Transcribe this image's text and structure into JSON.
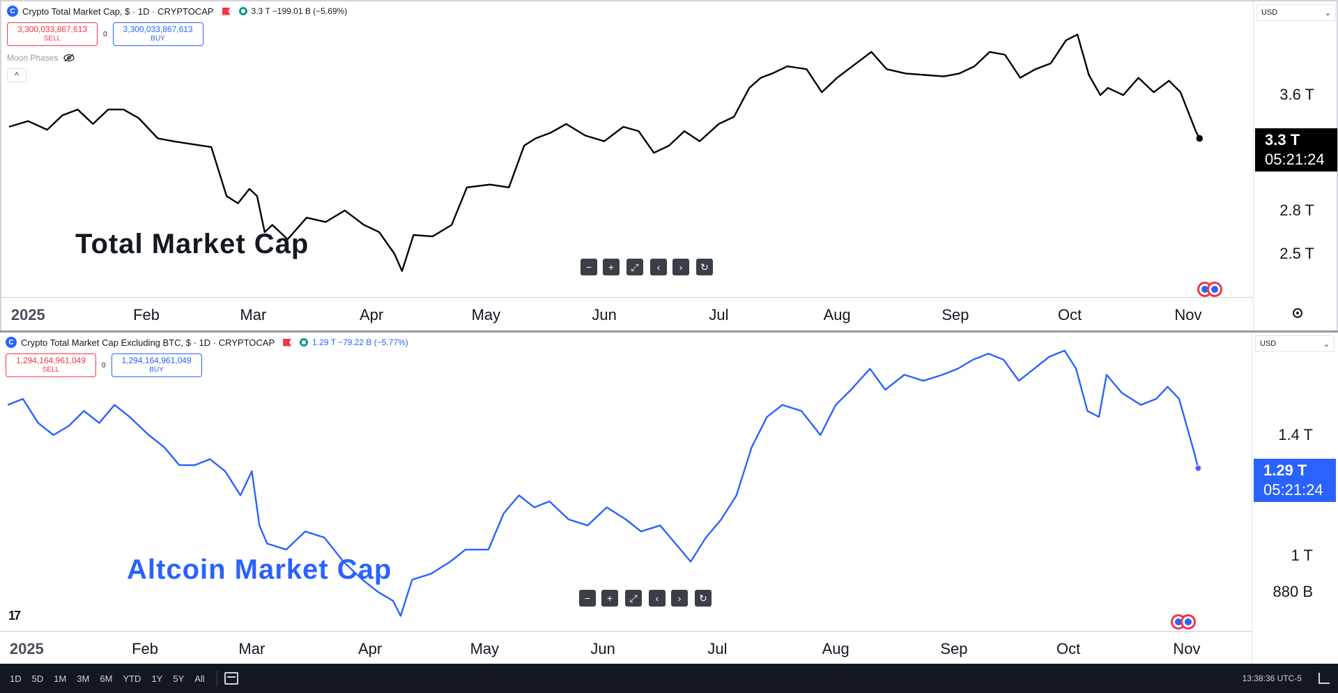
{
  "chart_data": [
    {
      "type": "line",
      "series": [
        {
          "line_color": "#000000",
          "x": [
            "2024-12-27",
            "2025-01-01",
            "2025-01-06",
            "2025-01-10",
            "2025-01-14",
            "2025-01-18",
            "2025-01-22",
            "2025-01-26",
            "2025-01-30",
            "2025-02-04",
            "2025-02-08",
            "2025-02-13",
            "2025-02-18",
            "2025-02-22",
            "2025-02-25",
            "2025-02-28",
            "2025-03-02",
            "2025-03-04",
            "2025-03-06",
            "2025-03-10",
            "2025-03-15",
            "2025-03-20",
            "2025-03-25",
            "2025-03-30",
            "2025-04-03",
            "2025-04-07",
            "2025-04-09",
            "2025-04-12",
            "2025-04-17",
            "2025-04-22",
            "2025-04-26",
            "2025-05-02",
            "2025-05-07",
            "2025-05-11",
            "2025-05-14",
            "2025-05-18",
            "2025-05-22",
            "2025-05-27",
            "2025-06-01",
            "2025-06-06",
            "2025-06-10",
            "2025-06-14",
            "2025-06-18",
            "2025-06-22",
            "2025-06-26",
            "2025-07-01",
            "2025-07-05",
            "2025-07-09",
            "2025-07-12",
            "2025-07-15",
            "2025-07-19",
            "2025-07-24",
            "2025-07-28",
            "2025-08-01",
            "2025-08-05",
            "2025-08-10",
            "2025-08-14",
            "2025-08-19",
            "2025-08-24",
            "2025-08-29",
            "2025-09-02",
            "2025-09-06",
            "2025-09-10",
            "2025-09-14",
            "2025-09-18",
            "2025-09-22",
            "2025-09-26",
            "2025-09-30",
            "2025-10-03",
            "2025-10-06",
            "2025-10-09",
            "2025-10-11",
            "2025-10-15",
            "2025-10-19",
            "2025-10-23",
            "2025-10-27",
            "2025-10-30",
            "2025-11-03",
            "2025-11-04"
          ],
          "values": [
            3.38,
            3.42,
            3.36,
            3.46,
            3.5,
            3.4,
            3.5,
            3.5,
            3.44,
            3.3,
            3.28,
            3.26,
            3.24,
            2.9,
            2.85,
            2.95,
            2.9,
            2.65,
            2.7,
            2.6,
            2.75,
            2.72,
            2.8,
            2.7,
            2.65,
            2.5,
            2.38,
            2.63,
            2.62,
            2.7,
            2.96,
            2.98,
            2.96,
            3.25,
            3.3,
            3.34,
            3.4,
            3.32,
            3.28,
            3.38,
            3.35,
            3.2,
            3.25,
            3.35,
            3.28,
            3.4,
            3.45,
            3.65,
            3.72,
            3.75,
            3.8,
            3.78,
            3.62,
            3.72,
            3.8,
            3.9,
            3.78,
            3.75,
            3.74,
            3.73,
            3.75,
            3.8,
            3.9,
            3.88,
            3.72,
            3.78,
            3.82,
            3.98,
            4.02,
            3.74,
            3.6,
            3.65,
            3.6,
            3.72,
            3.62,
            3.7,
            3.62,
            3.35,
            3.3
          ]
        }
      ],
      "x_ticks": [
        "2025",
        "Feb",
        "Mar",
        "Apr",
        "May",
        "Jun",
        "Jul",
        "Aug",
        "Sep",
        "Oct",
        "Nov"
      ],
      "x_tick_dates": [
        "2025-01-01",
        "2025-02-01",
        "2025-03-01",
        "2025-04-01",
        "2025-05-01",
        "2025-06-01",
        "2025-07-01",
        "2025-08-01",
        "2025-09-01",
        "2025-10-01",
        "2025-11-01"
      ],
      "y_ticks": [
        {
          "label": "3.6 T",
          "value": 3.6
        },
        {
          "label": "2.8 T",
          "value": 2.8
        },
        {
          "label": "2.5 T",
          "value": 2.5
        }
      ],
      "ylim": [
        2.2,
        4.25
      ],
      "last": {
        "value": 3.3,
        "label": "3.3 T",
        "countdown": "05:21:24"
      }
    },
    {
      "type": "line",
      "series": [
        {
          "line_color": "#2962ff",
          "x": [
            "2024-12-27",
            "2024-12-31",
            "2025-01-04",
            "2025-01-08",
            "2025-01-12",
            "2025-01-16",
            "2025-01-20",
            "2025-01-24",
            "2025-01-28",
            "2025-02-02",
            "2025-02-06",
            "2025-02-10",
            "2025-02-14",
            "2025-02-18",
            "2025-02-22",
            "2025-02-26",
            "2025-03-01",
            "2025-03-03",
            "2025-03-05",
            "2025-03-10",
            "2025-03-15",
            "2025-03-20",
            "2025-03-25",
            "2025-03-30",
            "2025-04-03",
            "2025-04-07",
            "2025-04-09",
            "2025-04-12",
            "2025-04-17",
            "2025-04-22",
            "2025-04-26",
            "2025-05-02",
            "2025-05-06",
            "2025-05-10",
            "2025-05-14",
            "2025-05-18",
            "2025-05-23",
            "2025-05-28",
            "2025-06-02",
            "2025-06-07",
            "2025-06-11",
            "2025-06-16",
            "2025-06-20",
            "2025-06-24",
            "2025-06-28",
            "2025-07-02",
            "2025-07-06",
            "2025-07-10",
            "2025-07-14",
            "2025-07-18",
            "2025-07-23",
            "2025-07-28",
            "2025-08-01",
            "2025-08-05",
            "2025-08-10",
            "2025-08-14",
            "2025-08-19",
            "2025-08-24",
            "2025-08-29",
            "2025-09-02",
            "2025-09-06",
            "2025-09-10",
            "2025-09-14",
            "2025-09-18",
            "2025-09-22",
            "2025-09-26",
            "2025-09-30",
            "2025-10-03",
            "2025-10-06",
            "2025-10-09",
            "2025-10-11",
            "2025-10-15",
            "2025-10-20",
            "2025-10-24",
            "2025-10-27",
            "2025-10-30",
            "2025-11-03",
            "2025-11-04"
          ],
          "values": [
            1.5,
            1.52,
            1.44,
            1.4,
            1.43,
            1.48,
            1.44,
            1.5,
            1.46,
            1.4,
            1.36,
            1.3,
            1.3,
            1.32,
            1.28,
            1.2,
            1.28,
            1.1,
            1.04,
            1.02,
            1.08,
            1.06,
            0.98,
            0.92,
            0.88,
            0.85,
            0.8,
            0.92,
            0.94,
            0.98,
            1.02,
            1.02,
            1.14,
            1.2,
            1.16,
            1.18,
            1.12,
            1.1,
            1.16,
            1.12,
            1.08,
            1.1,
            1.04,
            0.98,
            1.06,
            1.12,
            1.2,
            1.36,
            1.46,
            1.5,
            1.48,
            1.4,
            1.5,
            1.55,
            1.62,
            1.55,
            1.6,
            1.58,
            1.6,
            1.62,
            1.65,
            1.67,
            1.65,
            1.58,
            1.62,
            1.66,
            1.68,
            1.62,
            1.48,
            1.46,
            1.6,
            1.54,
            1.5,
            1.52,
            1.56,
            1.52,
            1.34,
            1.29
          ]
        }
      ],
      "x_ticks": [
        "2025",
        "Feb",
        "Mar",
        "Apr",
        "May",
        "Jun",
        "Jul",
        "Aug",
        "Sep",
        "Oct",
        "Nov"
      ],
      "x_tick_dates": [
        "2025-01-01",
        "2025-02-01",
        "2025-03-01",
        "2025-04-01",
        "2025-05-01",
        "2025-06-01",
        "2025-07-01",
        "2025-08-01",
        "2025-09-01",
        "2025-10-01",
        "2025-11-01"
      ],
      "y_ticks": [
        {
          "label": "1.4 T",
          "value": 1.4
        },
        {
          "label": "1 T",
          "value": 1.0
        },
        {
          "label": "880 B",
          "value": 0.88
        }
      ],
      "ylim": [
        0.75,
        1.74
      ],
      "last": {
        "value": 1.29,
        "label": "1.29 T",
        "countdown": "05:21:24"
      }
    }
  ],
  "top": {
    "symbol": "Crypto Total Market Cap, $ · 1D · CRYPTOCAP",
    "ohlc": "3.3 T  −199.01 B (−5.69%)",
    "ohlc_color": "#131722",
    "sell_price": "3,300,033,867,613",
    "buy_price": "3,300,033,867,613",
    "sell_label": "SELL",
    "buy_label": "BUY",
    "spread": "0",
    "moon": "Moon Phases",
    "collapse": "^",
    "currency": "USD",
    "title": "Total Market Cap",
    "title_color": "#131722",
    "last_bg": "#000000"
  },
  "bottom": {
    "symbol": "Crypto Total Market Cap Excluding BTC, $ · 1D · CRYPTOCAP",
    "ohlc": "1.29 T  −79.22 B (−5.77%)",
    "ohlc_color": "#2962ff",
    "sell_price": "1,294,164,961,049",
    "buy_price": "1,294,164,961,049",
    "sell_label": "SELL",
    "buy_label": "BUY",
    "spread": "0",
    "currency": "USD",
    "title": "Altcoin Market Cap",
    "title_color": "#2962ff",
    "last_bg": "#2962ff"
  },
  "nav_buttons": [
    "−",
    "+",
    "⤢",
    "‹",
    "›",
    "↻"
  ],
  "logo_text": "17",
  "toolbar": {
    "timeframes": [
      "1D",
      "5D",
      "1M",
      "3M",
      "6M",
      "YTD",
      "1Y",
      "5Y",
      "All"
    ],
    "clock": "13:38:36 UTC-5"
  }
}
